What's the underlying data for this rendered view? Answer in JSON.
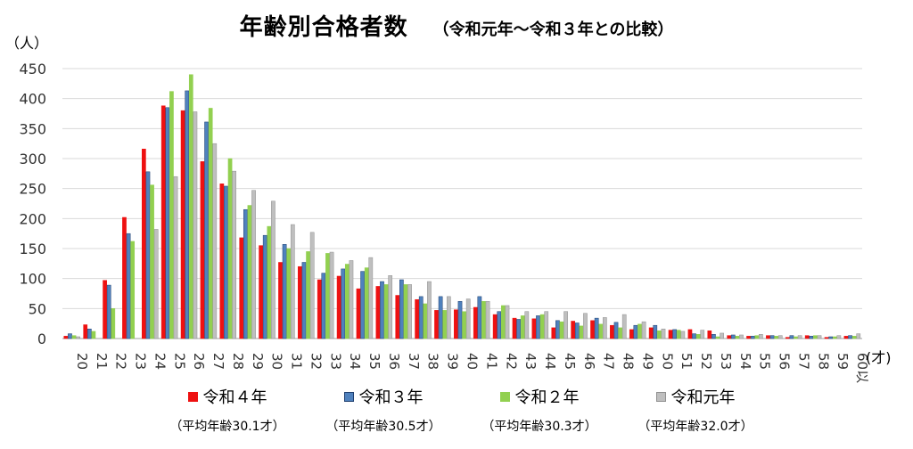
{
  "chart_data": {
    "type": "bar",
    "title": "年齢別合格者数",
    "subtitle": "（令和元年～令和３年との比較）",
    "ylabel": "（人）",
    "xlabel": "(才)",
    "ylim": [
      0,
      450
    ],
    "yticks": [
      0,
      50,
      100,
      150,
      200,
      250,
      300,
      350,
      400,
      450
    ],
    "grid": true,
    "legend_position": "bottom",
    "categories": [
      "20",
      "21",
      "22",
      "23",
      "24",
      "25",
      "26",
      "27",
      "28",
      "29",
      "30",
      "31",
      "32",
      "33",
      "34",
      "35",
      "36",
      "37",
      "38",
      "39",
      "40",
      "41",
      "42",
      "43",
      "44",
      "45",
      "46",
      "47",
      "48",
      "49",
      "50",
      "51",
      "52",
      "53",
      "54",
      "55",
      "56",
      "57",
      "58",
      "59",
      "60以上"
    ],
    "series": [
      {
        "name": "令和４年",
        "note": "（平均年齢30.1才）",
        "color": "#ee1111",
        "border": "#ee1111",
        "values": [
          4,
          23,
          97,
          202,
          316,
          388,
          380,
          295,
          258,
          168,
          155,
          127,
          120,
          98,
          104,
          83,
          87,
          72,
          65,
          47,
          48,
          52,
          40,
          34,
          33,
          18,
          29,
          30,
          22,
          15,
          18,
          14,
          15,
          13,
          5,
          4,
          5,
          2,
          5,
          2,
          4
        ]
      },
      {
        "name": "令和３年",
        "note": "（平均年齢30.5才）",
        "color": "#4f81bd",
        "border": "#1f3f6f",
        "values": [
          8,
          16,
          89,
          175,
          278,
          385,
          413,
          361,
          254,
          215,
          172,
          157,
          127,
          109,
          116,
          112,
          95,
          98,
          70,
          70,
          62,
          70,
          45,
          32,
          38,
          30,
          26,
          34,
          27,
          22,
          22,
          15,
          8,
          7,
          6,
          4,
          5,
          5,
          4,
          3,
          5
        ]
      },
      {
        "name": "令和２年",
        "note": "（平均年齢30.3才）",
        "color": "#92d050",
        "border": "#92d050",
        "values": [
          5,
          12,
          50,
          162,
          256,
          412,
          440,
          384,
          300,
          222,
          187,
          150,
          145,
          142,
          124,
          118,
          90,
          90,
          58,
          47,
          45,
          62,
          55,
          38,
          40,
          28,
          21,
          24,
          18,
          24,
          13,
          14,
          7,
          3,
          4,
          5,
          4,
          3,
          5,
          3,
          4
        ]
      },
      {
        "name": "令和元年",
        "note": "（平均年齢32.0才）",
        "color": "#bfbfbf",
        "border": "#909090",
        "values": [
          3,
          0,
          0,
          0,
          182,
          270,
          378,
          325,
          279,
          247,
          229,
          190,
          177,
          144,
          130,
          135,
          105,
          90,
          95,
          70,
          66,
          62,
          55,
          45,
          45,
          45,
          42,
          35,
          40,
          28,
          16,
          12,
          14,
          9,
          6,
          7,
          5,
          5,
          5,
          5,
          8
        ]
      }
    ]
  }
}
